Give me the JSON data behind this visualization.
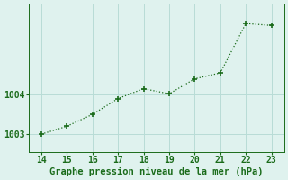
{
  "x": [
    14,
    15,
    16,
    17,
    18,
    19,
    20,
    21,
    22,
    23
  ],
  "y": [
    1003.0,
    1003.2,
    1003.5,
    1003.9,
    1004.15,
    1004.02,
    1004.4,
    1004.55,
    1005.8,
    1005.75
  ],
  "line_color": "#1a6b1a",
  "marker": "+",
  "marker_size": 4,
  "marker_lw": 1.2,
  "background_color": "#dff2ee",
  "grid_color": "#b8dcd6",
  "xlabel": "Graphe pression niveau de la mer (hPa)",
  "xlabel_color": "#1a6b1a",
  "xlabel_fontsize": 7.5,
  "tick_color": "#1a6b1a",
  "tick_fontsize": 7,
  "xlim": [
    13.5,
    23.5
  ],
  "ylim": [
    1002.55,
    1006.3
  ],
  "yticks": [
    1003,
    1004
  ],
  "xticks": [
    14,
    15,
    16,
    17,
    18,
    19,
    20,
    21,
    22,
    23
  ],
  "linewidth": 0.9,
  "linestyle": ":"
}
